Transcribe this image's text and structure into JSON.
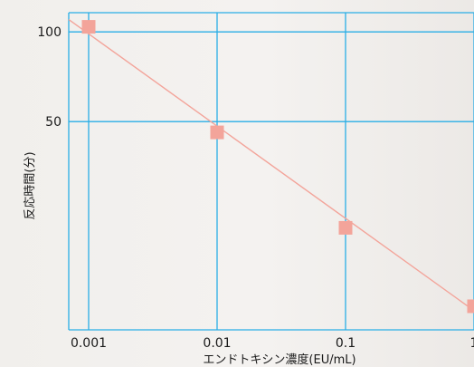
{
  "chart_data": {
    "type": "scatter",
    "title": "",
    "xlabel": "エンドトキシン濃度(EU/mL)",
    "ylabel": "反応時間(分)",
    "x_scale": "log",
    "y_scale": "log",
    "xlim": [
      0.0007,
      1.0
    ],
    "ylim": [
      10,
      116
    ],
    "x_ticks": [
      0.001,
      0.01,
      0.1,
      1
    ],
    "x_tick_labels": [
      "0.001",
      "0.01",
      "0.1",
      "1"
    ],
    "y_ticks": [
      50,
      100
    ],
    "y_tick_labels": [
      "50",
      "100"
    ],
    "grid": true,
    "legend": "none",
    "points": [
      {
        "x": 0.001,
        "y": 104
      },
      {
        "x": 0.01,
        "y": 46
      },
      {
        "x": 0.1,
        "y": 22
      },
      {
        "x": 1,
        "y": 12
      }
    ],
    "fit_line": {
      "x": [
        0.0007,
        1.0
      ],
      "y": [
        110,
        11.6
      ]
    },
    "colors": {
      "grid": "#29aee6",
      "marker": "#f3a49a",
      "fit_line": "#f3a49a",
      "axis": "#29aee6"
    }
  }
}
